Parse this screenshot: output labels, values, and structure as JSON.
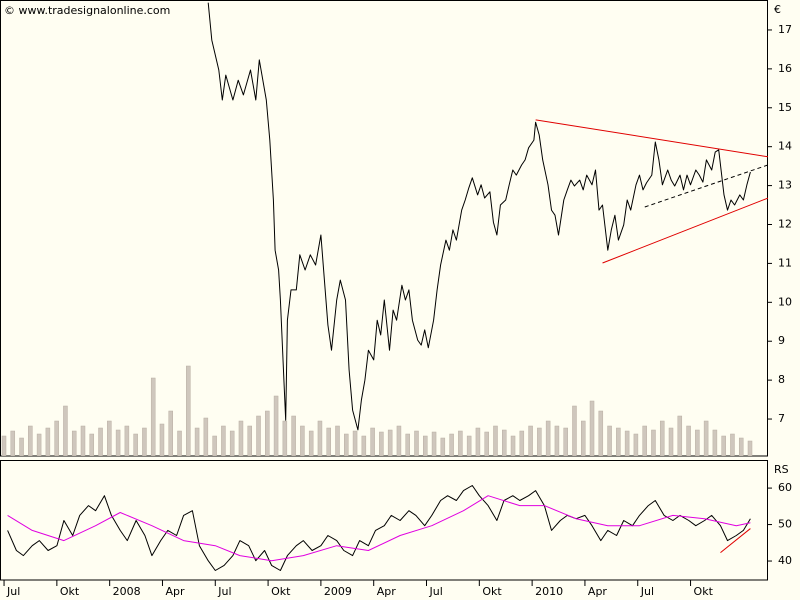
{
  "chart_data": [
    {
      "type": "line",
      "title": "© www.tradesignalonline.com",
      "ylabel": "€",
      "xlim": [
        -0.23,
        43.4
      ],
      "ylim": [
        6.05,
        17.77
      ],
      "yticks": [
        7,
        8,
        9,
        10,
        11,
        12,
        13,
        14,
        15,
        16,
        17
      ],
      "series": [
        {
          "color": "#000000",
          "x": [
            11.6,
            11.8,
            12.2,
            12.4,
            12.6,
            13.0,
            13.3,
            13.6,
            14.0,
            14.3,
            14.5,
            14.9,
            15.1,
            15.3,
            15.4,
            15.6,
            15.7,
            15.9,
            16.0,
            16.1,
            16.3,
            16.6,
            16.8,
            17.1,
            17.4,
            17.7,
            18.0,
            18.2,
            18.4,
            18.6,
            18.9,
            19.1,
            19.4,
            19.6,
            19.8,
            20.1,
            20.3,
            20.5,
            20.7,
            21.0,
            21.2,
            21.4,
            21.6,
            21.9,
            22.1,
            22.3,
            22.6,
            22.8,
            23.0,
            23.2,
            23.5,
            23.7,
            23.9,
            24.1,
            24.4,
            24.6,
            24.8,
            25.1,
            25.3,
            25.5,
            25.7,
            26.0,
            26.2,
            26.4,
            26.6,
            26.9,
            27.1,
            27.3,
            27.6,
            27.8,
            28.0,
            28.2,
            28.5,
            28.7,
            28.9,
            29.1,
            29.4,
            29.6,
            29.8,
            30.1,
            30.2,
            30.4,
            30.6,
            30.9,
            31.1,
            31.3,
            31.5,
            31.8,
            32.0,
            32.2,
            32.4,
            32.7,
            32.9,
            33.1,
            33.4,
            33.6,
            33.8,
            34.0,
            34.3,
            34.5,
            34.7,
            34.9,
            35.2,
            35.4,
            35.6,
            35.9,
            36.1,
            36.3,
            36.5,
            36.8,
            37.0,
            37.2,
            37.4,
            37.7,
            37.9,
            38.1,
            38.4,
            38.6,
            38.8,
            39.0,
            39.3,
            39.5,
            39.7,
            39.9,
            40.2,
            40.4,
            40.6,
            40.9,
            41.1,
            41.3,
            41.5,
            41.8,
            42.0,
            42.2,
            42.4
          ],
          "values": [
            17.7,
            16.74,
            15.97,
            15.2,
            15.84,
            15.2,
            15.71,
            15.33,
            15.97,
            15.2,
            16.23,
            15.2,
            14.17,
            12.63,
            11.34,
            10.83,
            10.06,
            8.0,
            6.97,
            9.54,
            10.32,
            10.32,
            11.22,
            10.83,
            11.22,
            10.96,
            11.73,
            10.57,
            9.42,
            8.77,
            10.06,
            10.57,
            10.06,
            8.26,
            7.23,
            6.72,
            7.49,
            8.0,
            8.77,
            8.52,
            9.54,
            9.16,
            10.06,
            8.77,
            9.8,
            9.54,
            10.44,
            10.06,
            10.32,
            9.54,
            9.03,
            8.9,
            9.29,
            8.83,
            9.54,
            10.32,
            10.96,
            11.6,
            11.34,
            11.86,
            11.6,
            12.37,
            12.63,
            12.94,
            13.2,
            12.76,
            13.02,
            12.68,
            12.84,
            12.06,
            11.73,
            12.5,
            12.63,
            13.02,
            13.4,
            13.27,
            13.53,
            13.66,
            13.97,
            14.17,
            14.63,
            14.3,
            13.66,
            13.02,
            12.37,
            12.24,
            11.73,
            12.63,
            12.89,
            13.14,
            12.99,
            13.14,
            12.89,
            13.27,
            13.02,
            13.4,
            12.37,
            12.5,
            11.34,
            11.86,
            12.24,
            11.6,
            11.99,
            12.63,
            12.37,
            13.02,
            13.27,
            12.89,
            13.07,
            13.27,
            14.12,
            13.66,
            13.02,
            13.4,
            13.14,
            12.99,
            13.27,
            12.89,
            13.27,
            13.02,
            13.4,
            13.27,
            13.09,
            13.66,
            13.4,
            13.86,
            13.92,
            12.76,
            12.37,
            12.63,
            12.5,
            12.76,
            12.63,
            13.02,
            13.35
          ]
        }
      ],
      "trendlines": [
        {
          "color": "#e00000",
          "x": [
            30.2,
            43.4
          ],
          "values": [
            14.69,
            13.74
          ]
        },
        {
          "color": "#e00000",
          "x": [
            34.0,
            43.4
          ],
          "values": [
            11.01,
            12.68
          ]
        },
        {
          "color": "#000000",
          "dashed": true,
          "x": [
            36.4,
            43.4
          ],
          "values": [
            12.45,
            13.53
          ]
        }
      ],
      "volume": {
        "color": "#cfc7bd",
        "vlim": [
          0,
          100
        ],
        "values": [
          20,
          25,
          18,
          30,
          22,
          28,
          35,
          50,
          25,
          30,
          22,
          28,
          35,
          26,
          30,
          22,
          28,
          78,
          32,
          45,
          25,
          90,
          28,
          38,
          20,
          30,
          25,
          35,
          30,
          40,
          45,
          60,
          35,
          40,
          30,
          25,
          35,
          28,
          30,
          22,
          25,
          20,
          28,
          24,
          26,
          30,
          22,
          25,
          20,
          24,
          18,
          22,
          25,
          20,
          28,
          24,
          30,
          26,
          20,
          25,
          30,
          28,
          35,
          30,
          28,
          50,
          35,
          55,
          45,
          30,
          28,
          25,
          22,
          30,
          26,
          35,
          28,
          40,
          30,
          26,
          35,
          26,
          20,
          22,
          18,
          15
        ]
      }
    },
    {
      "type": "line",
      "ylabel": "RS",
      "xlim": [
        -0.23,
        43.4
      ],
      "ylim": [
        34.8,
        67.7
      ],
      "yticks": [
        40,
        50,
        60
      ],
      "xticks": [
        {
          "value": 0,
          "label": "Jul"
        },
        {
          "value": 3,
          "label": "Okt"
        },
        {
          "value": 6,
          "label": "2008"
        },
        {
          "value": 9,
          "label": "Apr"
        },
        {
          "value": 12,
          "label": "Jul"
        },
        {
          "value": 15,
          "label": "Okt"
        },
        {
          "value": 18,
          "label": "2009"
        },
        {
          "value": 21,
          "label": "Apr"
        },
        {
          "value": 24,
          "label": "Jul"
        },
        {
          "value": 27,
          "label": "Okt"
        },
        {
          "value": 30,
          "label": "2010"
        },
        {
          "value": 33,
          "label": "Apr"
        },
        {
          "value": 36,
          "label": "Jul"
        },
        {
          "value": 39,
          "label": "Okt"
        }
      ],
      "series": [
        {
          "color": "#000000",
          "x": [
            0.2,
            0.7,
            1.1,
            1.6,
            2.0,
            2.5,
            3.0,
            3.4,
            3.9,
            4.3,
            4.8,
            5.2,
            5.7,
            6.1,
            6.6,
            7.0,
            7.5,
            8.0,
            8.4,
            8.9,
            9.3,
            9.8,
            10.2,
            10.7,
            11.1,
            11.6,
            12.0,
            12.5,
            13.0,
            13.4,
            13.9,
            14.3,
            14.8,
            15.2,
            15.7,
            16.1,
            16.6,
            17.0,
            17.5,
            18.0,
            18.4,
            18.9,
            19.3,
            19.8,
            20.2,
            20.7,
            21.1,
            21.6,
            22.0,
            22.5,
            23.0,
            23.4,
            23.9,
            24.3,
            24.8,
            25.2,
            25.7,
            26.1,
            26.6,
            27.0,
            27.5,
            28.0,
            28.4,
            28.9,
            29.3,
            29.8,
            30.2,
            30.7,
            31.1,
            31.6,
            32.0,
            32.5,
            33.0,
            33.4,
            33.9,
            34.3,
            34.8,
            35.2,
            35.7,
            36.1,
            36.6,
            37.0,
            37.5,
            38.0,
            38.4,
            38.9,
            39.3,
            39.8,
            40.2,
            40.7,
            41.1,
            41.6,
            42.0,
            42.4
          ],
          "values": [
            48.4,
            42.9,
            41.5,
            44.2,
            45.6,
            42.9,
            44.2,
            51.1,
            47.0,
            52.5,
            55.2,
            53.8,
            57.9,
            52.5,
            48.4,
            45.6,
            51.1,
            47.0,
            41.5,
            45.6,
            48.4,
            47.0,
            52.5,
            53.8,
            44.2,
            40.1,
            37.4,
            38.8,
            41.5,
            45.6,
            44.2,
            40.1,
            42.9,
            38.8,
            37.4,
            41.5,
            44.2,
            45.6,
            42.9,
            44.2,
            47.0,
            45.6,
            42.9,
            41.5,
            45.6,
            44.2,
            48.4,
            49.7,
            52.5,
            51.1,
            53.8,
            52.5,
            49.7,
            52.5,
            56.6,
            57.9,
            56.6,
            59.3,
            60.7,
            57.9,
            55.2,
            51.1,
            56.6,
            57.9,
            56.6,
            57.9,
            59.3,
            55.2,
            48.4,
            51.1,
            52.5,
            51.6,
            52.5,
            49.7,
            45.6,
            48.4,
            47.0,
            51.1,
            49.7,
            52.5,
            55.2,
            56.6,
            52.5,
            51.1,
            52.5,
            51.1,
            49.7,
            51.1,
            52.5,
            49.7,
            45.6,
            47.0,
            48.4,
            51.6
          ]
        },
        {
          "color": "#e000e0",
          "x": [
            0.2,
            1.6,
            3.4,
            5.2,
            6.6,
            8.4,
            10.2,
            12.0,
            13.4,
            15.2,
            17.0,
            18.9,
            20.7,
            22.5,
            24.3,
            26.1,
            27.5,
            29.3,
            30.7,
            32.5,
            34.3,
            36.1,
            38.0,
            39.8,
            41.6,
            42.4
          ],
          "values": [
            52.5,
            48.4,
            45.6,
            49.7,
            53.3,
            49.7,
            45.6,
            44.2,
            41.5,
            40.1,
            41.5,
            44.2,
            42.9,
            47.0,
            49.7,
            53.8,
            57.9,
            55.2,
            55.2,
            51.6,
            49.7,
            49.7,
            52.5,
            51.6,
            49.7,
            50.5
          ]
        }
      ],
      "trendlines": [
        {
          "color": "#e00000",
          "x": [
            40.7,
            42.4
          ],
          "values": [
            42.3,
            48.9
          ]
        }
      ]
    }
  ]
}
